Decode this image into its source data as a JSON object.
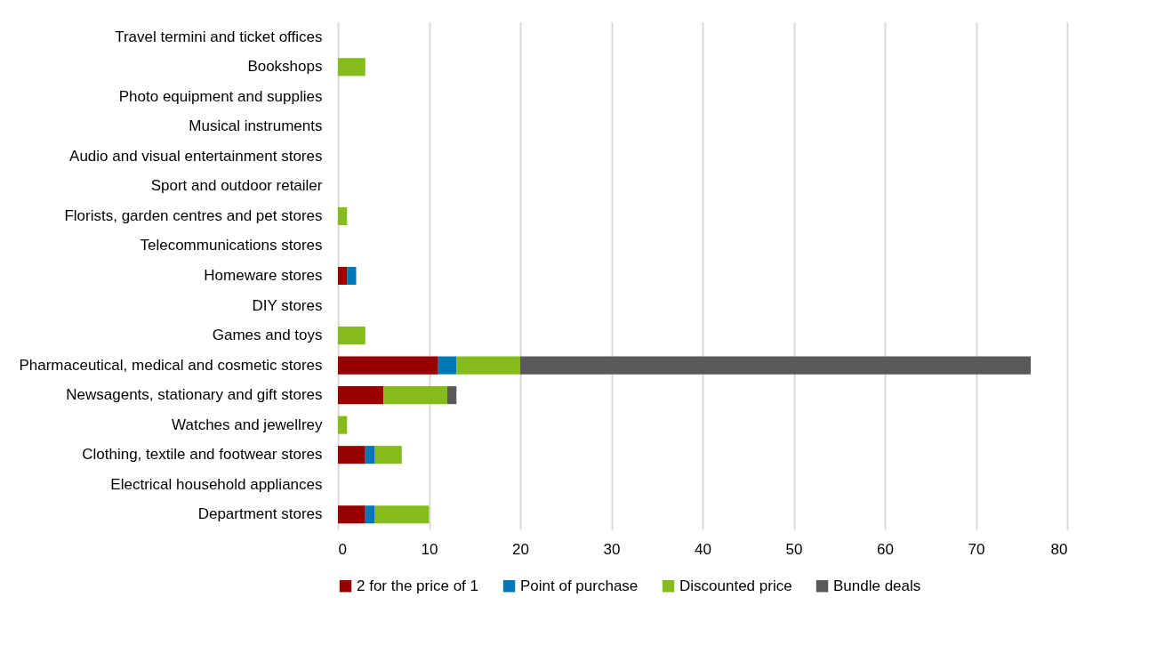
{
  "chart_data": {
    "type": "bar",
    "orientation": "horizontal",
    "stacked": true,
    "categories": [
      "Travel termini and ticket offices",
      "Bookshops",
      "Photo equipment and supplies",
      "Musical instruments",
      "Audio and visual entertainment stores",
      "Sport and outdoor retailer",
      "Florists, garden centres and pet stores",
      "Telecommunications stores",
      "Homeware stores",
      "DIY stores",
      "Games and toys",
      "Pharmaceutical, medical and cosmetic stores",
      "Newsagents, stationary and gift stores",
      "Watches and jewellrey",
      "Clothing, textile and footwear stores",
      "Electrical household appliances",
      "Department stores"
    ],
    "series": [
      {
        "name": "2 for the price of 1",
        "color": "#990000",
        "values": [
          0,
          0,
          0,
          0,
          0,
          0,
          0,
          0,
          1,
          0,
          0,
          11,
          5,
          0,
          3,
          0,
          3
        ]
      },
      {
        "name": "Point of purchase",
        "color": "#0077b6",
        "values": [
          0,
          0,
          0,
          0,
          0,
          0,
          0,
          0,
          1,
          0,
          0,
          2,
          0,
          0,
          1,
          0,
          1
        ]
      },
      {
        "name": "Discounted price",
        "color": "#85bc1c",
        "values": [
          0,
          3,
          0,
          0,
          0,
          0,
          1,
          0,
          0,
          0,
          3,
          7,
          7,
          1,
          3,
          0,
          6
        ]
      },
      {
        "name": "Bundle deals",
        "color": "#595959",
        "values": [
          0,
          0,
          0,
          0,
          0,
          0,
          0,
          0,
          0,
          0,
          0,
          56,
          1,
          0,
          0,
          0,
          0
        ]
      }
    ],
    "xlim": [
      0,
      80
    ],
    "xticks": [
      0,
      10,
      20,
      30,
      40,
      50,
      60,
      70,
      80
    ],
    "grid": "x",
    "legend": "bottom"
  }
}
